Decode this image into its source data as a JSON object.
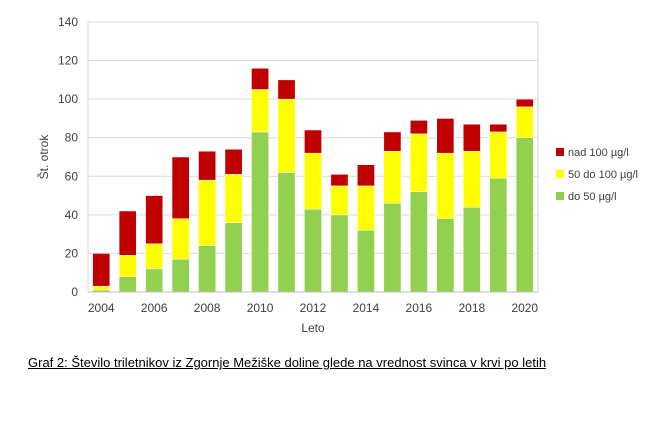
{
  "caption": "Graf 2: Število triletnikov iz Zgornje Mežiške doline glede na vrednost svinca v krvi po letih",
  "chart_data": {
    "type": "bar",
    "stacked": true,
    "title": "",
    "xlabel": "Leto",
    "ylabel": "Št. otrok",
    "ylim": [
      0,
      140
    ],
    "yticks": [
      0,
      20,
      40,
      60,
      80,
      100,
      120,
      140
    ],
    "grid": true,
    "legend_position": "right",
    "categories": [
      "2004",
      "2005",
      "2006",
      "2007",
      "2008",
      "2009",
      "2010",
      "2011",
      "2012",
      "2013",
      "2014",
      "2015",
      "2016",
      "2017",
      "2018",
      "2019",
      "2020"
    ],
    "xtick_labels": [
      "2004",
      "",
      "2006",
      "",
      "2008",
      "",
      "2010",
      "",
      "2012",
      "",
      "2014",
      "",
      "2016",
      "",
      "2018",
      "",
      "2020"
    ],
    "series": [
      {
        "name": "do 50 µg/l",
        "color": "#92d050",
        "values": [
          1,
          8,
          12,
          17,
          24,
          36,
          83,
          62,
          43,
          40,
          32,
          46,
          52,
          38,
          44,
          59,
          80
        ]
      },
      {
        "name": "50 do 100 µg/l",
        "color": "#ffff00",
        "values": [
          2,
          11,
          13,
          21,
          34,
          25,
          22,
          38,
          29,
          15,
          23,
          27,
          30,
          34,
          29,
          24,
          16
        ]
      },
      {
        "name": "nad 100 µg/l",
        "color": "#c00000",
        "values": [
          17,
          23,
          25,
          32,
          15,
          13,
          11,
          10,
          12,
          6,
          11,
          10,
          7,
          18,
          14,
          4,
          4
        ]
      }
    ],
    "legend_order": [
      "nad 100 µg/l",
      "50 do 100 µg/l",
      "do 50 µg/l"
    ]
  }
}
